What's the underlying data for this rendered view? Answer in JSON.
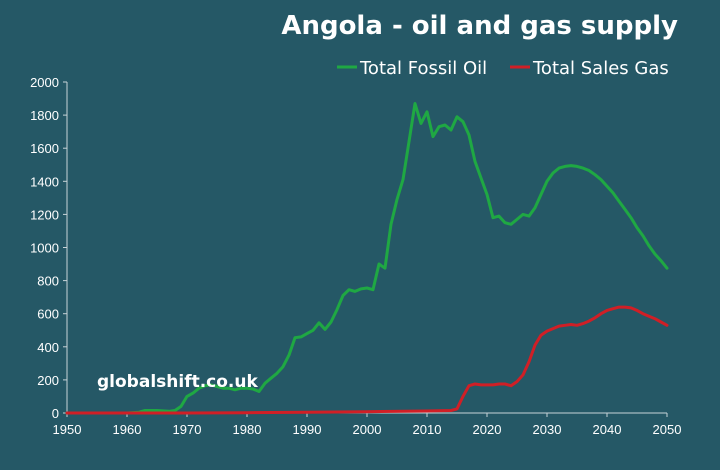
{
  "chart_data": {
    "type": "line",
    "title": "Angola - oil and gas supply",
    "xlabel": "",
    "ylabel": "",
    "xlim": [
      1950,
      2050
    ],
    "ylim": [
      0,
      2000
    ],
    "x_ticks": [
      1950,
      1960,
      1970,
      1980,
      1990,
      2000,
      2010,
      2020,
      2030,
      2040,
      2050
    ],
    "y_ticks": [
      0,
      200,
      400,
      600,
      800,
      1000,
      1200,
      1400,
      1600,
      1800,
      2000
    ],
    "grid": false,
    "legend_position": "top-right",
    "watermark": "globalshift.co.uk",
    "series": [
      {
        "name": "Total Fossil Oil",
        "color": "#1fa843",
        "x": [
          1950,
          1955,
          1960,
          1962,
          1963,
          1965,
          1967,
          1968,
          1969,
          1970,
          1971,
          1972,
          1973,
          1974,
          1975,
          1976,
          1977,
          1978,
          1979,
          1980,
          1981,
          1982,
          1983,
          1984,
          1985,
          1986,
          1987,
          1988,
          1989,
          1990,
          1991,
          1992,
          1993,
          1994,
          1995,
          1996,
          1997,
          1998,
          1999,
          2000,
          2001,
          2002,
          2003,
          2004,
          2005,
          2006,
          2007,
          2008,
          2009,
          2010,
          2011,
          2012,
          2013,
          2014,
          2015,
          2016,
          2017,
          2018,
          2019,
          2020,
          2021,
          2022,
          2023,
          2024,
          2025,
          2026,
          2027,
          2028,
          2029,
          2030,
          2031,
          2032,
          2033,
          2034,
          2035,
          2036,
          2037,
          2038,
          2039,
          2040,
          2041,
          2042,
          2043,
          2044,
          2045,
          2046,
          2047,
          2048,
          2049,
          2050
        ],
        "values": [
          0,
          0,
          0,
          5,
          15,
          15,
          10,
          15,
          40,
          100,
          120,
          150,
          165,
          170,
          160,
          150,
          150,
          140,
          150,
          150,
          145,
          130,
          180,
          210,
          240,
          280,
          350,
          455,
          460,
          480,
          500,
          545,
          505,
          550,
          625,
          710,
          745,
          735,
          750,
          755,
          745,
          900,
          875,
          1140,
          1290,
          1410,
          1640,
          1870,
          1750,
          1820,
          1670,
          1730,
          1740,
          1710,
          1790,
          1760,
          1680,
          1520,
          1420,
          1320,
          1180,
          1190,
          1150,
          1140,
          1170,
          1200,
          1190,
          1240,
          1320,
          1400,
          1450,
          1480,
          1490,
          1495,
          1490,
          1480,
          1465,
          1440,
          1410,
          1370,
          1330,
          1280,
          1230,
          1180,
          1120,
          1070,
          1010,
          960,
          920,
          875
        ]
      },
      {
        "name": "Total Sales Gas",
        "color": "#d01f26",
        "x": [
          1950,
          1960,
          1970,
          1980,
          1990,
          2000,
          2010,
          2014,
          2015,
          2016,
          2017,
          2018,
          2019,
          2020,
          2021,
          2022,
          2023,
          2024,
          2025,
          2026,
          2027,
          2028,
          2029,
          2030,
          2031,
          2032,
          2033,
          2034,
          2035,
          2036,
          2037,
          2038,
          2039,
          2040,
          2041,
          2042,
          2043,
          2044,
          2045,
          2046,
          2047,
          2048,
          2049,
          2050
        ],
        "values": [
          0,
          0,
          0,
          2,
          5,
          8,
          12,
          15,
          25,
          100,
          165,
          175,
          170,
          170,
          170,
          175,
          175,
          165,
          190,
          230,
          310,
          410,
          470,
          495,
          510,
          525,
          530,
          535,
          530,
          540,
          555,
          575,
          600,
          620,
          630,
          640,
          640,
          635,
          620,
          600,
          585,
          570,
          550,
          530
        ]
      }
    ]
  }
}
